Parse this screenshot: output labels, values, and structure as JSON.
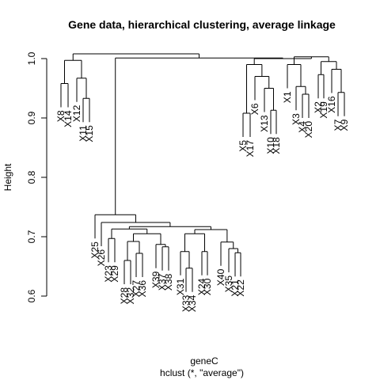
{
  "chart_data": {
    "type": "dendrogram",
    "title": "Gene data, hierarchical clustering, average linkage",
    "xlabel": "geneC",
    "sublabel": "hclust (*, \"average\")",
    "ylabel": "Height",
    "ylim": [
      0.58,
      1.02
    ],
    "y_ticks": [
      "0.6",
      "0.7",
      "0.8",
      "0.9",
      "1.0"
    ],
    "leaves": [
      "X8",
      "X14",
      "X12",
      "X11",
      "X15",
      "X25",
      "X26",
      "X23",
      "X29",
      "X28",
      "X32",
      "X27",
      "X36",
      "X39",
      "X37",
      "X38",
      "X31",
      "X33",
      "X34",
      "X24",
      "X30",
      "X40",
      "X35",
      "X21",
      "X22",
      "X5",
      "X17",
      "X6",
      "X13",
      "X10",
      "X18",
      "X1",
      "X3",
      "X4",
      "X20",
      "X2",
      "X19",
      "X16",
      "X7",
      "X9"
    ],
    "merges": [
      {
        "a": "X8",
        "b": "X14",
        "h": 0.958
      },
      {
        "a": "X11",
        "b": "X15",
        "h": 0.933
      },
      {
        "a": "X12",
        "b": "X11+X15",
        "h": 0.967
      },
      {
        "a": "X8+X14",
        "b": "X12+X11+X15",
        "h": 0.997
      },
      {
        "a": "X28",
        "b": "X32",
        "h": 0.66
      },
      {
        "a": "X27",
        "b": "X36",
        "h": 0.672
      },
      {
        "a": "X28+X32",
        "b": "X27+X36",
        "h": 0.692
      },
      {
        "a": "X37",
        "b": "X38",
        "h": 0.683
      },
      {
        "a": "X39",
        "b": "X37+X38",
        "h": 0.687
      },
      {
        "a": "g1",
        "b": "g2",
        "h": 0.705
      },
      {
        "a": "X23",
        "b": "X29",
        "h": 0.697
      },
      {
        "a": "X23+X29",
        "b": "g3",
        "h": 0.713
      },
      {
        "a": "X33",
        "b": "X34",
        "h": 0.647
      },
      {
        "a": "X31",
        "b": "X33+X34",
        "h": 0.675
      },
      {
        "a": "X24",
        "b": "X30",
        "h": 0.675
      },
      {
        "a": "g4",
        "b": "g5",
        "h": 0.705
      },
      {
        "a": "X21",
        "b": "X22",
        "h": 0.673
      },
      {
        "a": "X35",
        "b": "X21+X22",
        "h": 0.68
      },
      {
        "a": "X40",
        "b": "g6",
        "h": 0.691
      },
      {
        "a": "g7",
        "b": "g8",
        "h": 0.712
      },
      {
        "a": "g9",
        "b": "g10",
        "h": 0.717
      },
      {
        "a": "X26",
        "b": "g11",
        "h": 0.724
      },
      {
        "a": "X25",
        "b": "g12",
        "h": 0.737
      },
      {
        "a": "X5",
        "b": "X17",
        "h": 0.908
      },
      {
        "a": "X10",
        "b": "X18",
        "h": 0.913
      },
      {
        "a": "X13",
        "b": "X10+X18",
        "h": 0.95
      },
      {
        "a": "X6",
        "b": "g13",
        "h": 0.97
      },
      {
        "a": "g14",
        "b": "g15",
        "h": 0.99
      },
      {
        "a": "X4",
        "b": "X20",
        "h": 0.94
      },
      {
        "a": "X3",
        "b": "X4+X20",
        "h": 0.953
      },
      {
        "a": "X1",
        "b": "g16",
        "h": 0.99
      },
      {
        "a": "X2",
        "b": "X19",
        "h": 0.973
      },
      {
        "a": "X7",
        "b": "X9",
        "h": 0.943
      },
      {
        "a": "X16",
        "b": "X7+X9",
        "h": 0.982
      },
      {
        "a": "g17",
        "b": "g18",
        "h": 0.995
      },
      {
        "a": "g19",
        "b": "g20",
        "h": 1.003
      },
      {
        "a": "g21",
        "b": "g22",
        "h": 1.0
      },
      {
        "a": "g23",
        "b": "g24",
        "h": 1.001
      },
      {
        "a": "g0",
        "b": "g25",
        "h": 1.008
      }
    ]
  }
}
